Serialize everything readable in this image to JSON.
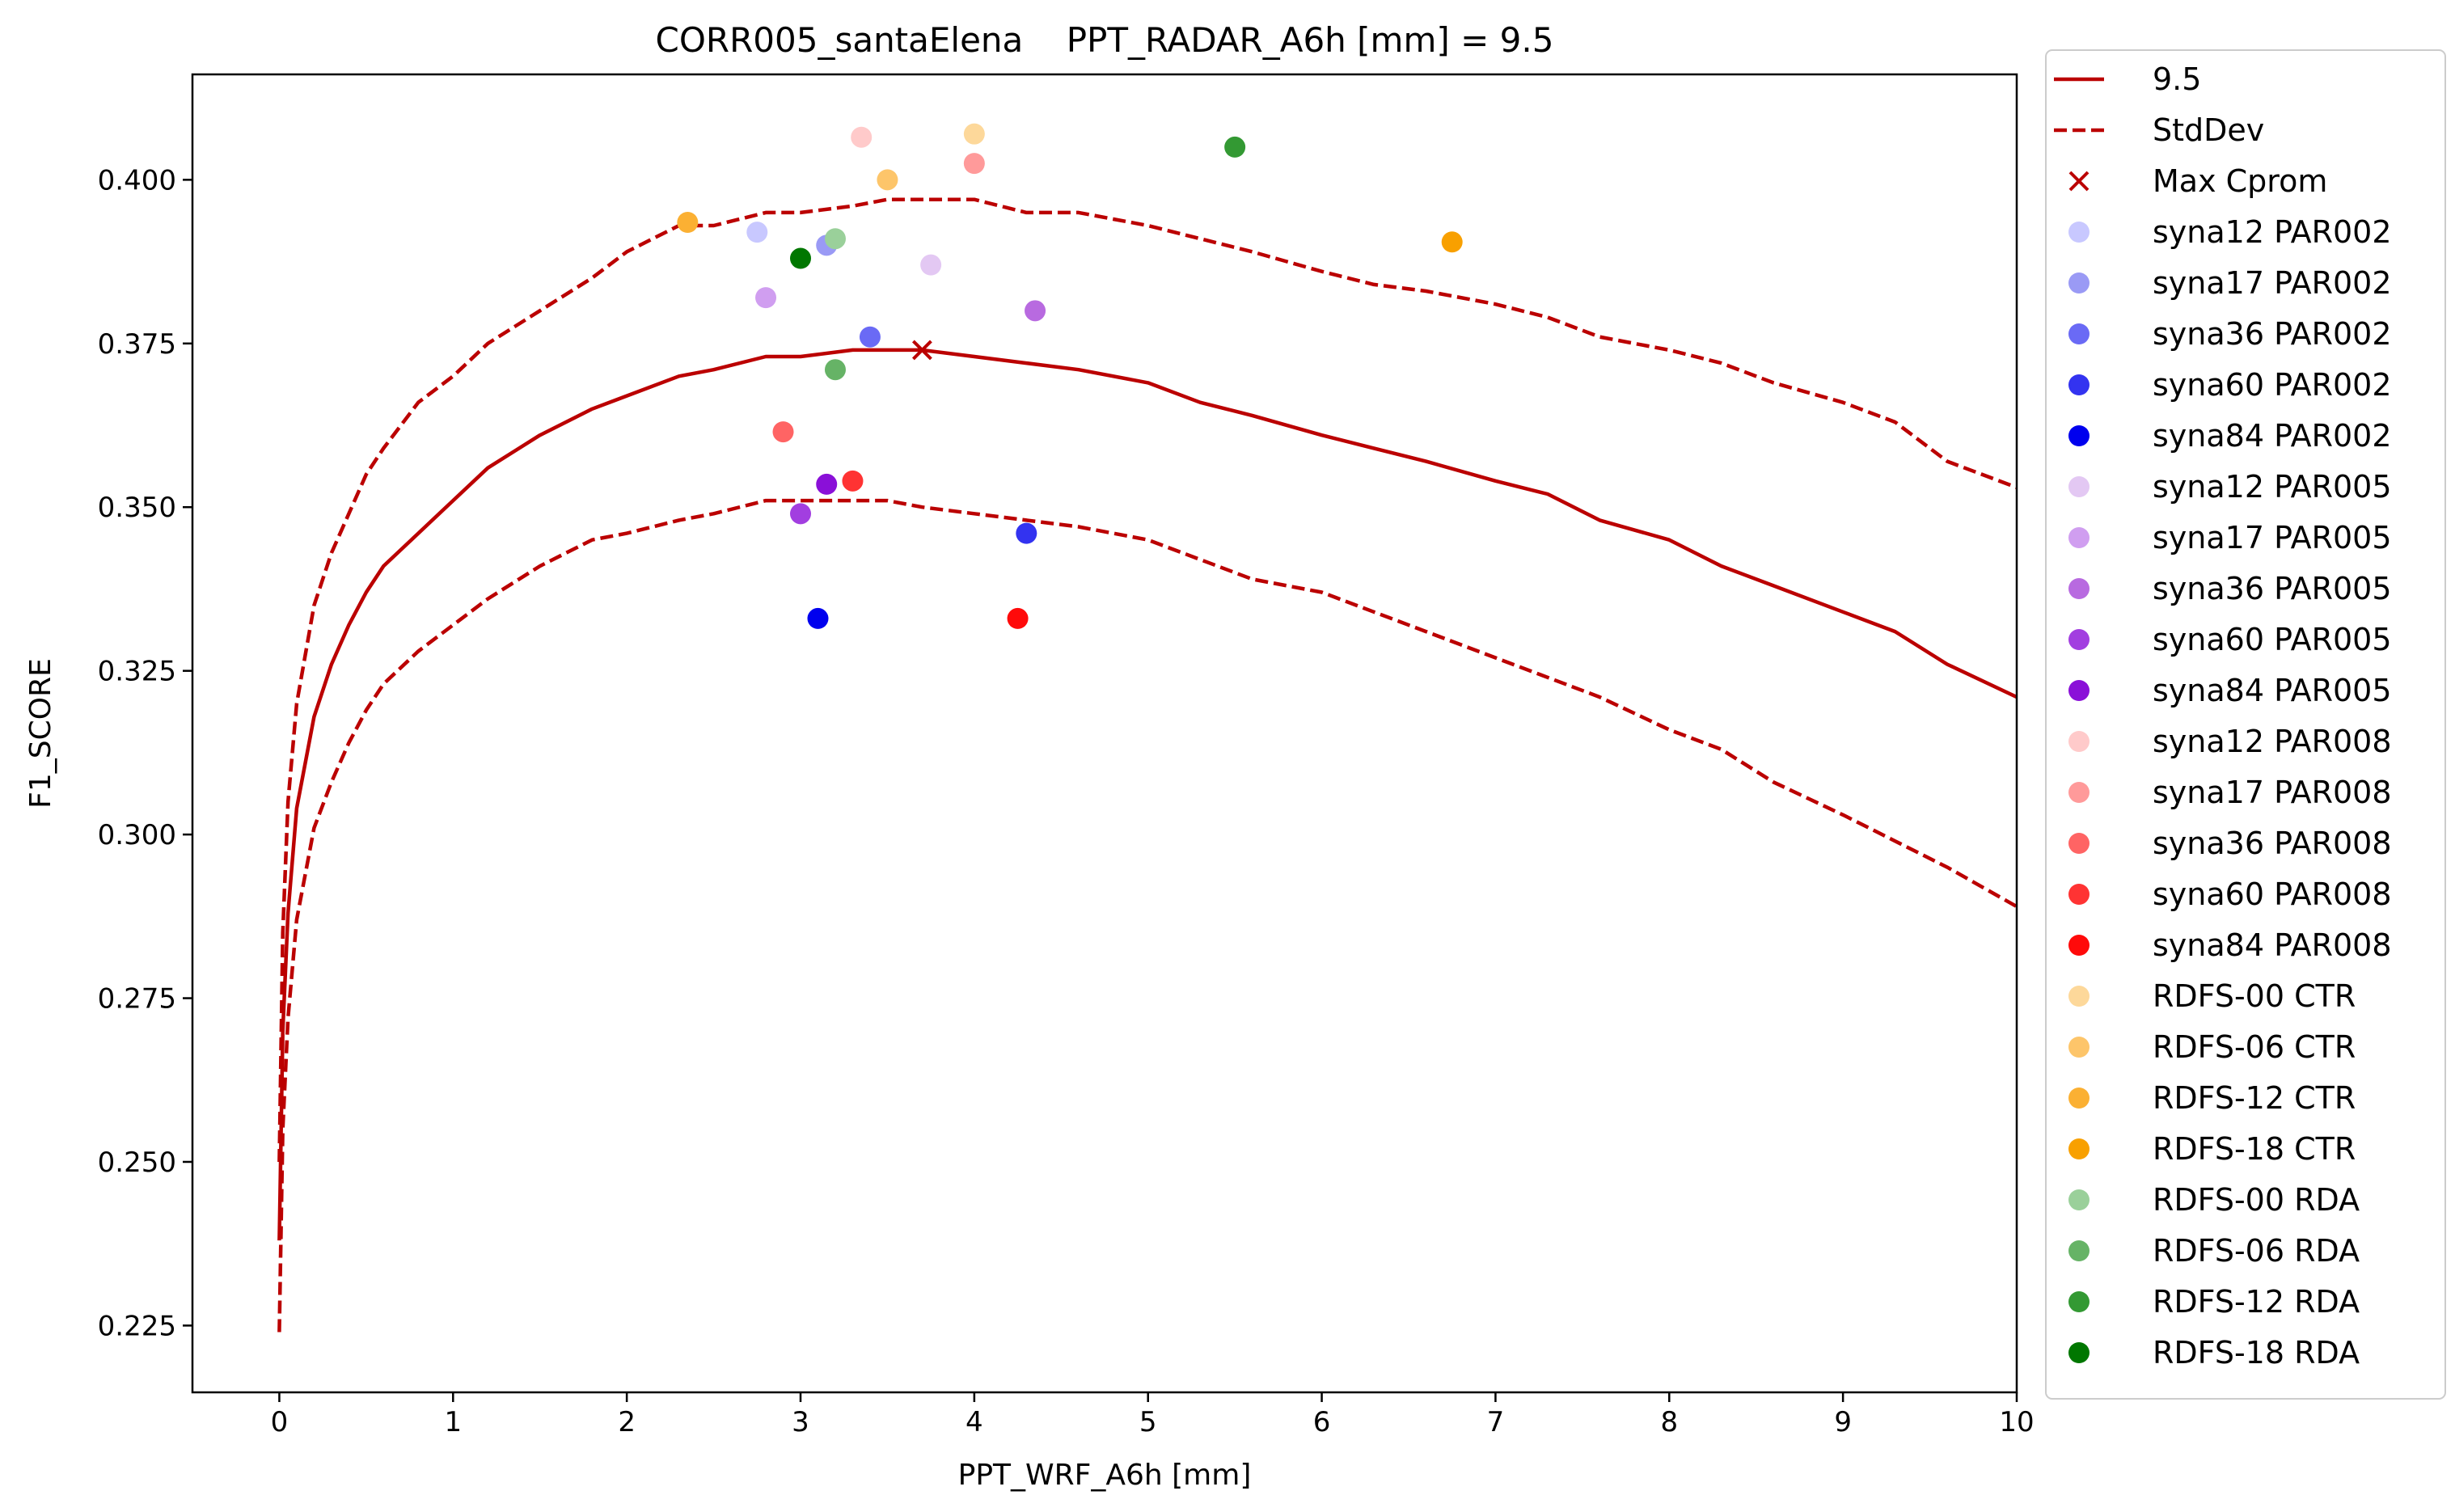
{
  "chart_data": {
    "type": "scatter",
    "title": "CORR005_santaElena    PPT_RADAR_A6h [mm] = 9.5",
    "xlabel": "PPT_WRF_A6h [mm]",
    "ylabel": "F1_SCORE",
    "xlim": [
      -0.5,
      10
    ],
    "ylim": [
      0.2148,
      0.4161
    ],
    "x_ticks": [
      0,
      1,
      2,
      3,
      4,
      5,
      6,
      7,
      8,
      9,
      10
    ],
    "y_ticks": [
      0.225,
      0.25,
      0.275,
      0.3,
      0.325,
      0.35,
      0.375,
      0.4
    ],
    "y_tick_labels": [
      "0.225",
      "0.250",
      "0.275",
      "0.300",
      "0.325",
      "0.350",
      "0.375",
      "0.400"
    ],
    "grid": false,
    "legend_position": "outside-right",
    "curves": [
      {
        "name": "9.5",
        "style": "solid",
        "color": "#bb0000",
        "x": [
          0,
          0.02,
          0.05,
          0.1,
          0.2,
          0.3,
          0.4,
          0.5,
          0.6,
          0.8,
          1.0,
          1.2,
          1.5,
          1.8,
          2.0,
          2.3,
          2.5,
          2.8,
          3.0,
          3.3,
          3.5,
          3.7,
          4.0,
          4.3,
          4.6,
          5.0,
          5.3,
          5.6,
          6.0,
          6.3,
          6.6,
          7.0,
          7.3,
          7.6,
          8.0,
          8.3,
          8.6,
          9.0,
          9.3,
          9.6,
          10.0
        ],
        "y": [
          0.238,
          0.27,
          0.288,
          0.304,
          0.318,
          0.326,
          0.332,
          0.337,
          0.341,
          0.346,
          0.351,
          0.356,
          0.361,
          0.365,
          0.367,
          0.37,
          0.371,
          0.373,
          0.373,
          0.374,
          0.374,
          0.374,
          0.373,
          0.372,
          0.371,
          0.369,
          0.366,
          0.364,
          0.361,
          0.359,
          0.357,
          0.354,
          0.352,
          0.348,
          0.345,
          0.341,
          0.338,
          0.334,
          0.331,
          0.326,
          0.321
        ]
      },
      {
        "name": "StdDev",
        "style": "dashed",
        "color": "#bb0000",
        "x": [
          0,
          0.02,
          0.05,
          0.1,
          0.2,
          0.3,
          0.4,
          0.5,
          0.6,
          0.8,
          1.0,
          1.2,
          1.5,
          1.8,
          2.0,
          2.3,
          2.5,
          2.8,
          3.0,
          3.3,
          3.5,
          3.7,
          4.0,
          4.3,
          4.6,
          5.0,
          5.3,
          5.6,
          6.0,
          6.3,
          6.6,
          7.0,
          7.3,
          7.6,
          8.0,
          8.3,
          8.6,
          9.0,
          9.3,
          9.6,
          10.0
        ],
        "y": [
          0.25,
          0.285,
          0.305,
          0.32,
          0.335,
          0.343,
          0.349,
          0.355,
          0.359,
          0.366,
          0.37,
          0.375,
          0.38,
          0.385,
          0.389,
          0.393,
          0.393,
          0.395,
          0.395,
          0.396,
          0.397,
          0.397,
          0.397,
          0.395,
          0.395,
          0.393,
          0.391,
          0.389,
          0.386,
          0.384,
          0.383,
          0.381,
          0.379,
          0.376,
          0.374,
          0.372,
          0.369,
          0.366,
          0.363,
          0.357,
          0.353
        ]
      },
      {
        "name": "StdDev",
        "style": "dashed",
        "color": "#bb0000",
        "x": [
          0,
          0.02,
          0.05,
          0.1,
          0.2,
          0.3,
          0.4,
          0.5,
          0.6,
          0.8,
          1.0,
          1.2,
          1.5,
          1.8,
          2.0,
          2.3,
          2.5,
          2.8,
          3.0,
          3.3,
          3.5,
          3.7,
          4.0,
          4.3,
          4.6,
          5.0,
          5.3,
          5.6,
          6.0,
          6.3,
          6.6,
          7.0,
          7.3,
          7.6,
          8.0,
          8.3,
          8.6,
          9.0,
          9.3,
          9.6,
          10.0
        ],
        "y": [
          0.224,
          0.255,
          0.272,
          0.287,
          0.301,
          0.308,
          0.314,
          0.319,
          0.323,
          0.328,
          0.332,
          0.336,
          0.341,
          0.345,
          0.346,
          0.348,
          0.349,
          0.351,
          0.351,
          0.351,
          0.351,
          0.35,
          0.349,
          0.348,
          0.347,
          0.345,
          0.342,
          0.339,
          0.337,
          0.334,
          0.331,
          0.327,
          0.324,
          0.321,
          0.316,
          0.313,
          0.308,
          0.303,
          0.299,
          0.295,
          0.289
        ]
      }
    ],
    "max_marker": {
      "name": "Max Cprom",
      "x": 3.7,
      "y": 0.374,
      "color": "#bb0000"
    },
    "points": [
      {
        "name": "syna12 PAR002",
        "x": 2.75,
        "y": 0.392,
        "color": "#c8c8ff"
      },
      {
        "name": "syna17 PAR002",
        "x": 3.15,
        "y": 0.39,
        "color": "#9a9af5"
      },
      {
        "name": "syna36 PAR002",
        "x": 3.4,
        "y": 0.376,
        "color": "#6a6af5"
      },
      {
        "name": "syna60 PAR002",
        "x": 4.3,
        "y": 0.346,
        "color": "#3333f0"
      },
      {
        "name": "syna84 PAR002",
        "x": 3.1,
        "y": 0.333,
        "color": "#0000ee"
      },
      {
        "name": "syna12 PAR005",
        "x": 3.75,
        "y": 0.387,
        "color": "#e3c8f3"
      },
      {
        "name": "syna17 PAR005",
        "x": 2.8,
        "y": 0.382,
        "color": "#d09ef0"
      },
      {
        "name": "syna36 PAR005",
        "x": 4.35,
        "y": 0.38,
        "color": "#b86ae0"
      },
      {
        "name": "syna60 PAR005",
        "x": 3.0,
        "y": 0.349,
        "color": "#a23ee0"
      },
      {
        "name": "syna84 PAR005",
        "x": 3.15,
        "y": 0.3535,
        "color": "#8a10d8"
      },
      {
        "name": "syna12 PAR008",
        "x": 3.35,
        "y": 0.4065,
        "color": "#ffcaca"
      },
      {
        "name": "syna17 PAR008",
        "x": 4.0,
        "y": 0.4025,
        "color": "#ff9a9a"
      },
      {
        "name": "syna36 PAR008",
        "x": 2.9,
        "y": 0.3615,
        "color": "#ff6464"
      },
      {
        "name": "syna60 PAR008",
        "x": 3.3,
        "y": 0.354,
        "color": "#ff3333"
      },
      {
        "name": "syna84 PAR008",
        "x": 4.25,
        "y": 0.333,
        "color": "#ff0a0a"
      },
      {
        "name": "RDFS-00 CTR",
        "x": 4.0,
        "y": 0.407,
        "color": "#fdd89a"
      },
      {
        "name": "RDFS-06 CTR",
        "x": 3.5,
        "y": 0.4,
        "color": "#fdc56a"
      },
      {
        "name": "RDFS-12 CTR",
        "x": 2.35,
        "y": 0.3935,
        "color": "#fbb033"
      },
      {
        "name": "RDFS-18 CTR",
        "x": 6.75,
        "y": 0.3905,
        "color": "#f8a000"
      },
      {
        "name": "RDFS-00 RDA",
        "x": 3.2,
        "y": 0.391,
        "color": "#9ad09a"
      },
      {
        "name": "RDFS-06 RDA",
        "x": 3.2,
        "y": 0.371,
        "color": "#66b366"
      },
      {
        "name": "RDFS-12 RDA",
        "x": 5.5,
        "y": 0.405,
        "color": "#339933"
      },
      {
        "name": "RDFS-18 RDA",
        "x": 3.0,
        "y": 0.388,
        "color": "#007700"
      }
    ],
    "legend": [
      {
        "label": "9.5",
        "kind": "line-solid",
        "color": "#bb0000"
      },
      {
        "label": "StdDev",
        "kind": "line-dashed",
        "color": "#bb0000"
      },
      {
        "label": "Max Cprom",
        "kind": "cross",
        "color": "#bb0000"
      },
      {
        "label": "syna12 PAR002",
        "kind": "dot",
        "color": "#c8c8ff"
      },
      {
        "label": "syna17 PAR002",
        "kind": "dot",
        "color": "#9a9af5"
      },
      {
        "label": "syna36 PAR002",
        "kind": "dot",
        "color": "#6a6af5"
      },
      {
        "label": "syna60 PAR002",
        "kind": "dot",
        "color": "#3333f0"
      },
      {
        "label": "syna84 PAR002",
        "kind": "dot",
        "color": "#0000ee"
      },
      {
        "label": "syna12 PAR005",
        "kind": "dot",
        "color": "#e3c8f3"
      },
      {
        "label": "syna17 PAR005",
        "kind": "dot",
        "color": "#d09ef0"
      },
      {
        "label": "syna36 PAR005",
        "kind": "dot",
        "color": "#b86ae0"
      },
      {
        "label": "syna60 PAR005",
        "kind": "dot",
        "color": "#a23ee0"
      },
      {
        "label": "syna84 PAR005",
        "kind": "dot",
        "color": "#8a10d8"
      },
      {
        "label": "syna12 PAR008",
        "kind": "dot",
        "color": "#ffcaca"
      },
      {
        "label": "syna17 PAR008",
        "kind": "dot",
        "color": "#ff9a9a"
      },
      {
        "label": "syna36 PAR008",
        "kind": "dot",
        "color": "#ff6464"
      },
      {
        "label": "syna60 PAR008",
        "kind": "dot",
        "color": "#ff3333"
      },
      {
        "label": "syna84 PAR008",
        "kind": "dot",
        "color": "#ff0a0a"
      },
      {
        "label": " RDFS-00 CTR",
        "kind": "dot",
        "color": "#fdd89a"
      },
      {
        "label": " RDFS-06 CTR",
        "kind": "dot",
        "color": "#fdc56a"
      },
      {
        "label": " RDFS-12 CTR",
        "kind": "dot",
        "color": "#fbb033"
      },
      {
        "label": " RDFS-18 CTR",
        "kind": "dot",
        "color": "#f8a000"
      },
      {
        "label": " RDFS-00 RDA",
        "kind": "dot",
        "color": "#9ad09a"
      },
      {
        "label": " RDFS-06 RDA",
        "kind": "dot",
        "color": "#66b366"
      },
      {
        "label": " RDFS-12 RDA",
        "kind": "dot",
        "color": "#339933"
      },
      {
        "label": " RDFS-18 RDA",
        "kind": "dot",
        "color": "#007700"
      }
    ]
  }
}
